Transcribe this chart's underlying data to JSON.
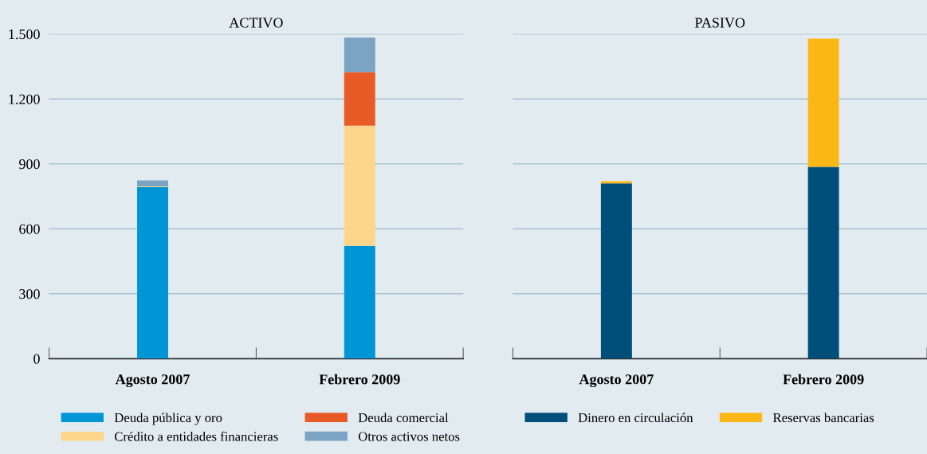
{
  "chart_data": [
    {
      "type": "bar",
      "title": "ACTIVO",
      "categories": [
        "Agosto 2007",
        "Febrero 2009"
      ],
      "stacked": true,
      "series": [
        {
          "name": "Deuda pública y oro",
          "color": "#0096d6",
          "values": [
            792,
            521
          ]
        },
        {
          "name": "Crédito a entidades financieras",
          "color": "#fdd68b",
          "values": [
            4,
            556
          ]
        },
        {
          "name": "Deuda comercial",
          "color": "#e85a26",
          "values": [
            0,
            247
          ]
        },
        {
          "name": "Otros activos netos",
          "color": "#7aa3c4",
          "values": [
            28,
            159
          ]
        }
      ],
      "ylim": [
        0,
        1500
      ],
      "yticks": [
        0,
        300,
        600,
        900,
        {
          "value": 1200,
          "label": "1.200"
        },
        {
          "value": 1500,
          "label": "1.500"
        }
      ],
      "grid": "y",
      "legend": "bottom"
    },
    {
      "type": "bar",
      "title": "PASIVO",
      "categories": [
        "Agosto 2007",
        "Febrero 2009"
      ],
      "stacked": true,
      "series": [
        {
          "name": "Dinero en circulación",
          "color": "#004f7b",
          "values": [
            810,
            886
          ]
        },
        {
          "name": "Reservas bancarias",
          "color": "#fbb716",
          "values": [
            10,
            593
          ]
        }
      ],
      "ylim": [
        0,
        1500
      ],
      "yticks": [
        0,
        300,
        600,
        900,
        1200,
        1500
      ],
      "grid": "y",
      "legend": "bottom",
      "tick_labels": "x"
    }
  ]
}
